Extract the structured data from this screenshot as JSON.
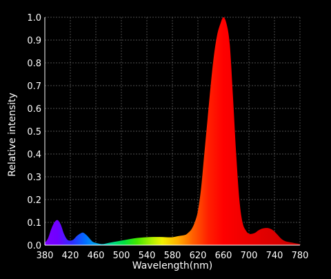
{
  "chart_data": {
    "type": "area",
    "title": "",
    "xlabel": "Wavelength(nm)",
    "ylabel": "Relative intensity",
    "xlim": [
      380,
      780
    ],
    "ylim": [
      0.0,
      1.0
    ],
    "x_ticks": [
      "380",
      "420",
      "460",
      "500",
      "540",
      "580",
      "620",
      "660",
      "700",
      "740",
      "780"
    ],
    "y_ticks": [
      "0.0",
      "0.1",
      "0.2",
      "0.3",
      "0.4",
      "0.5",
      "0.6",
      "0.7",
      "0.8",
      "0.9",
      "1.0"
    ],
    "grid": true,
    "legend": "none",
    "fill": "wavelength-spectrum-gradient",
    "series": [
      {
        "x": [
          380,
          385,
          390,
          395,
          400,
          405,
          410,
          415,
          420,
          425,
          430,
          435,
          440,
          445,
          450,
          455,
          460,
          470,
          480,
          490,
          500,
          510,
          520,
          530,
          540,
          550,
          560,
          570,
          580,
          590,
          600,
          605,
          610,
          615,
          620,
          625,
          630,
          635,
          640,
          645,
          650,
          655,
          660,
          665,
          670,
          675,
          680,
          685,
          690,
          695,
          700,
          705,
          710,
          715,
          720,
          725,
          730,
          735,
          740,
          745,
          750,
          755,
          760,
          770,
          780
        ],
        "y": [
          0.01,
          0.03,
          0.07,
          0.1,
          0.11,
          0.09,
          0.05,
          0.025,
          0.02,
          0.025,
          0.04,
          0.05,
          0.055,
          0.045,
          0.03,
          0.015,
          0.01,
          0.005,
          0.01,
          0.015,
          0.02,
          0.025,
          0.03,
          0.033,
          0.035,
          0.036,
          0.036,
          0.035,
          0.035,
          0.04,
          0.045,
          0.055,
          0.07,
          0.1,
          0.15,
          0.25,
          0.4,
          0.55,
          0.7,
          0.83,
          0.92,
          0.97,
          1.0,
          0.97,
          0.88,
          0.65,
          0.4,
          0.2,
          0.1,
          0.065,
          0.05,
          0.05,
          0.055,
          0.065,
          0.072,
          0.075,
          0.075,
          0.07,
          0.06,
          0.045,
          0.03,
          0.02,
          0.015,
          0.01,
          0.005
        ]
      }
    ]
  }
}
